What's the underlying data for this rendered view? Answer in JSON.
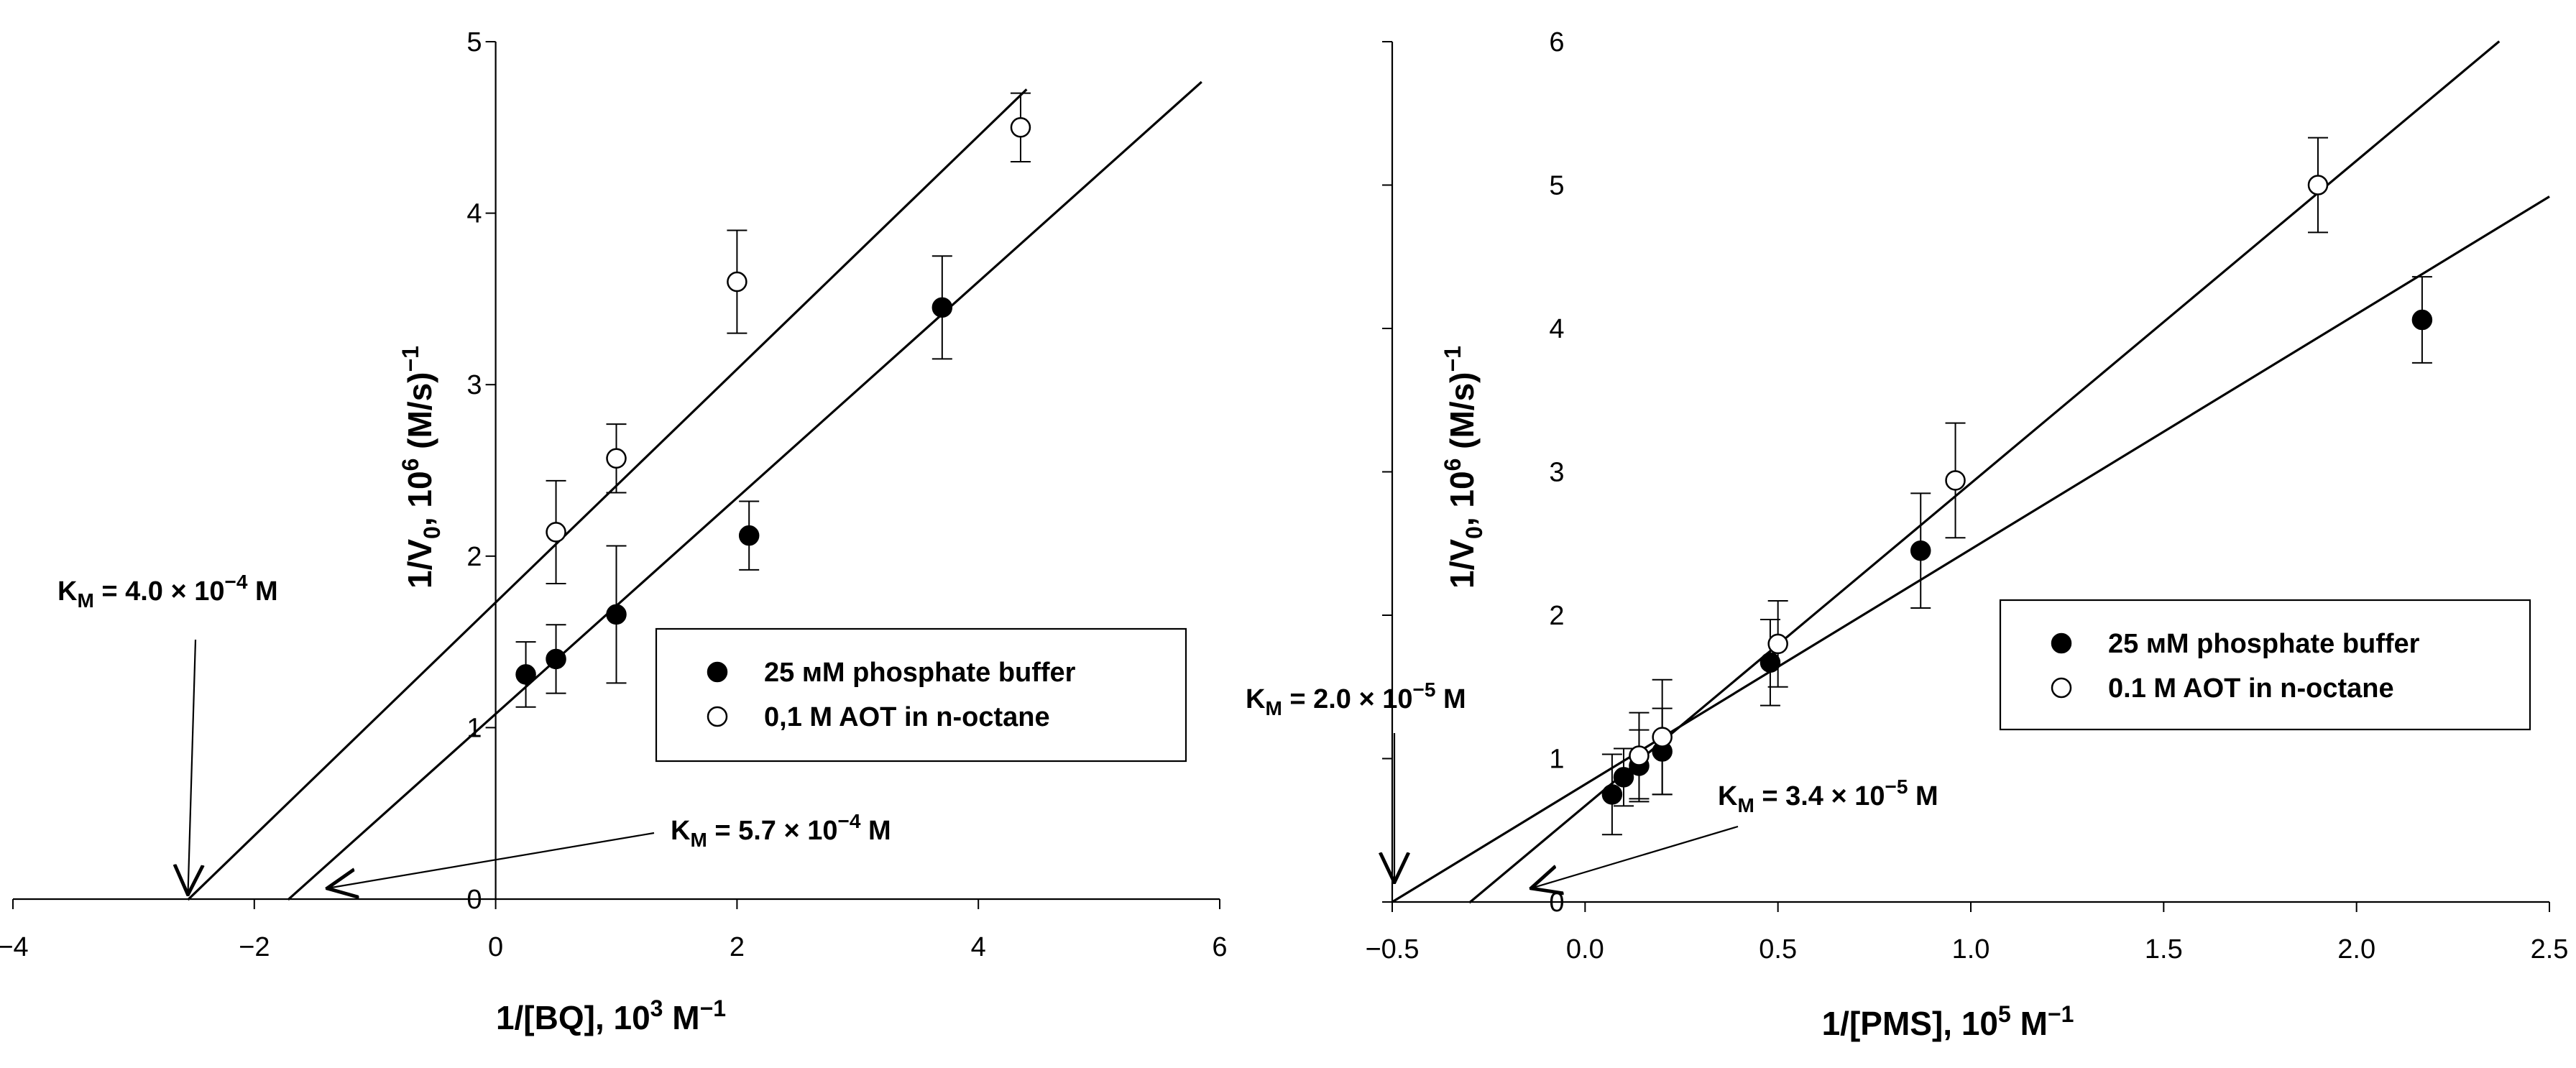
{
  "colors": {
    "ink": "#000000",
    "background": "#ffffff"
  },
  "chart_data": [
    {
      "type": "scatter",
      "title": "",
      "xlabel": {
        "main": "1/[BQ], 10",
        "sup": "3",
        "tail": " M",
        "sup2": "−1"
      },
      "ylabel": {
        "main": "1/V",
        "sub": "0",
        "mid": ", 10",
        "sup": "6",
        "tail": " (M/s)",
        "sup2": "−1"
      },
      "xlim": [
        -4,
        6
      ],
      "ylim": [
        0,
        5
      ],
      "xticks": [
        -4,
        -2,
        0,
        2,
        4,
        6
      ],
      "xtick_labels": [
        "−4",
        "−2",
        "0",
        "2",
        "4",
        "6"
      ],
      "yticks": [
        0,
        1,
        2,
        3,
        4,
        5
      ],
      "ytick_labels": [
        "0",
        "1",
        "2",
        "3",
        "4",
        "5"
      ],
      "legend_position": "center-right",
      "series": [
        {
          "name": "25 мM phosphate buffer",
          "marker": "filled-circle",
          "points": [
            {
              "x": 0.25,
              "y": 1.31,
              "err": 0.19
            },
            {
              "x": 0.5,
              "y": 1.4,
              "err": 0.2
            },
            {
              "x": 1.0,
              "y": 1.66,
              "err": 0.4
            },
            {
              "x": 2.1,
              "y": 2.12,
              "err": 0.2
            },
            {
              "x": 3.7,
              "y": 3.45,
              "err": 0.3
            }
          ],
          "fit": {
            "slope": 0.63,
            "intercept": 1.08,
            "x_from": -1.72,
            "x_to": 5.85
          }
        },
        {
          "name": "0,1 M AOT in n-octane",
          "marker": "open-circle",
          "points": [
            {
              "x": 0.5,
              "y": 2.14,
              "err": 0.3
            },
            {
              "x": 1.0,
              "y": 2.57,
              "err": 0.2
            },
            {
              "x": 2.0,
              "y": 3.6,
              "err": 0.3
            },
            {
              "x": 4.35,
              "y": 4.5,
              "err": 0.2
            }
          ],
          "fit": {
            "slope": 0.68,
            "intercept": 1.73,
            "x_from": -2.55,
            "x_to": 4.4
          }
        }
      ],
      "annotations": [
        {
          "label": "K",
          "sub": "M",
          "text": " = 4.0 × 10",
          "sup": "−4",
          "tail": " M",
          "points_to_x": -2.55
        },
        {
          "label": "K",
          "sub": "M",
          "text": " = 5.7 × 10",
          "sup": "−4",
          "tail": " M",
          "points_to_x": -1.72
        }
      ]
    },
    {
      "type": "scatter",
      "title": "",
      "xlabel": {
        "main": "1/[PMS], 10",
        "sup": "5",
        "tail": " M",
        "sup2": "−1"
      },
      "ylabel": {
        "main": "1/V",
        "sub": "0",
        "mid": ", 10",
        "sup": "6",
        "tail": " (M/s)",
        "sup2": "−1"
      },
      "xlim": [
        -0.5,
        2.5
      ],
      "ylim": [
        0,
        6
      ],
      "xticks": [
        -0.5,
        0.0,
        0.5,
        1.0,
        1.5,
        2.0,
        2.5
      ],
      "xtick_labels": [
        "−0.5",
        "0.0",
        "0.5",
        "1.0",
        "1.5",
        "2.0",
        "2.5"
      ],
      "yticks": [
        0,
        1,
        2,
        3,
        4,
        5,
        6
      ],
      "ytick_labels": [
        "0",
        "1",
        "2",
        "3",
        "4",
        "5",
        "6"
      ],
      "legend_position": "center-right",
      "series": [
        {
          "name": "25 мM phosphate buffer",
          "marker": "filled-circle",
          "points": [
            {
              "x": 0.07,
              "y": 0.75,
              "err": 0.28
            },
            {
              "x": 0.1,
              "y": 0.87,
              "err": 0.2
            },
            {
              "x": 0.14,
              "y": 0.95,
              "err": 0.25
            },
            {
              "x": 0.2,
              "y": 1.05,
              "err": 0.3
            },
            {
              "x": 0.48,
              "y": 1.67,
              "err": 0.3
            },
            {
              "x": 0.87,
              "y": 2.45,
              "err": 0.4
            },
            {
              "x": 2.17,
              "y": 4.06,
              "err": 0.3
            }
          ],
          "fit": {
            "slope": 1.64,
            "intercept": 0.82,
            "x_from": -0.5,
            "x_to": 2.5
          }
        },
        {
          "name": "0.1 M AOT in n-octane",
          "marker": "open-circle",
          "points": [
            {
              "x": 0.14,
              "y": 1.02,
              "err": 0.3
            },
            {
              "x": 0.2,
              "y": 1.15,
              "err": 0.4
            },
            {
              "x": 0.5,
              "y": 1.8,
              "err": 0.3
            },
            {
              "x": 0.96,
              "y": 2.94,
              "err": 0.4
            },
            {
              "x": 1.9,
              "y": 5.0,
              "err": 0.33
            }
          ],
          "fit": {
            "slope": 2.25,
            "intercept": 0.67,
            "x_from": -0.3,
            "x_to": 2.37
          }
        }
      ],
      "annotations": [
        {
          "label": "K",
          "sub": "M",
          "text": " = 2.0 × 10",
          "sup": "−5",
          "tail": " M",
          "points_to_x": -0.5
        },
        {
          "label": "K",
          "sub": "M",
          "text": " = 3.4 × 10",
          "sup": "−5",
          "tail": " M",
          "points_to_x": -0.3
        }
      ]
    }
  ]
}
